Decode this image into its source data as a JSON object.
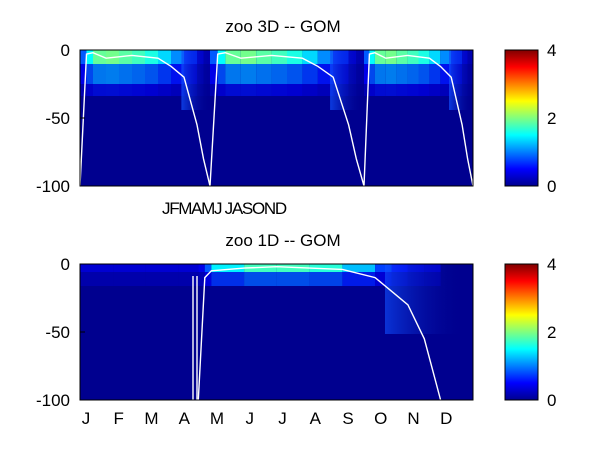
{
  "colors": {
    "background": "#ffffff",
    "frame": "#000000",
    "mixed_layer_line": "#ffffff",
    "colormap": [
      "#00008f",
      "#0000ff",
      "#00ffff",
      "#ffff00",
      "#ff0000",
      "#800000"
    ]
  },
  "chart_data": [
    {
      "type": "heatmap",
      "title": "zoo 3D   -- GOM",
      "xlabel_text": "JFMAMJ JASOND",
      "ylim": [
        -100,
        0
      ],
      "yticks": [
        0,
        -50,
        -100
      ],
      "colorbar": {
        "range": [
          0,
          4
        ],
        "ticks": [
          4,
          2,
          0
        ]
      },
      "colormap": "jet",
      "panels": 3,
      "sample_x": [
        0,
        0.05,
        0.1,
        0.2,
        0.3,
        0.4,
        0.5,
        0.6,
        0.7,
        0.8,
        0.9,
        0.95,
        1.0
      ],
      "mixed_layer_depth": [
        -100,
        -3,
        -2,
        -6,
        -5,
        -4,
        -5,
        -6,
        -12,
        -20,
        -55,
        -80,
        -100
      ],
      "surface_concentration": [
        0.5,
        1.2,
        1.8,
        2.0,
        1.9,
        1.8,
        1.7,
        1.5,
        1.2,
        0.9,
        0.4,
        0.2,
        0.1
      ]
    },
    {
      "type": "heatmap",
      "title": "zoo 1D   -- GOM",
      "ylim": [
        -100,
        0
      ],
      "yticks": [
        0,
        -50,
        -100
      ],
      "xticks": [
        "J",
        "F",
        "M",
        "A",
        "M",
        "J",
        "J",
        "A",
        "S",
        "O",
        "N",
        "D"
      ],
      "colorbar": {
        "range": [
          0,
          4
        ],
        "ticks": [
          4,
          2,
          0
        ]
      },
      "colormap": "jet",
      "sample_month": [
        1,
        2,
        3,
        4,
        4.6,
        4.8,
        5,
        6,
        7,
        8,
        9,
        10,
        10.5,
        11,
        11.5,
        12
      ],
      "mixed_layer_depth": [
        null,
        null,
        null,
        null,
        -100,
        -10,
        -5,
        -3,
        -2,
        -3,
        -4,
        -10,
        -20,
        -30,
        -55,
        -100
      ],
      "surface_concentration": [
        0.3,
        0.3,
        0.3,
        0.3,
        0.3,
        0.5,
        1.2,
        1.7,
        1.8,
        1.7,
        1.6,
        0.9,
        0.6,
        0.4,
        0.3,
        0.3
      ]
    }
  ]
}
